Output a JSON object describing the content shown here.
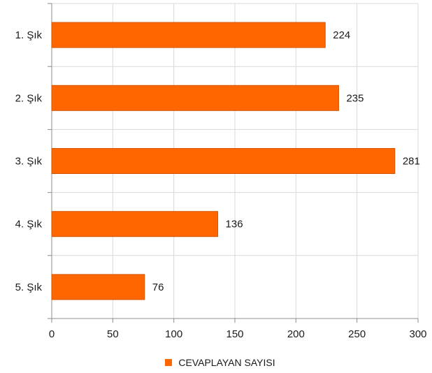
{
  "chart_data": {
    "type": "bar",
    "orientation": "horizontal",
    "categories": [
      "1. Şık",
      "2. Şık",
      "3. Şık",
      "4. Şık",
      "5. Şık"
    ],
    "series": [
      {
        "name": "CEVAPLAYAN SAYISI",
        "values": [
          224,
          235,
          281,
          136,
          76
        ],
        "color": "#ff6600"
      }
    ],
    "xlim": [
      0,
      300
    ],
    "x_ticks": [
      "0",
      "50",
      "100",
      "150",
      "200",
      "250",
      "300"
    ],
    "data_labels": [
      "224",
      "235",
      "281",
      "136",
      "76"
    ],
    "grid": true,
    "legend_position": "bottom",
    "title": "",
    "xlabel": "",
    "ylabel": ""
  }
}
